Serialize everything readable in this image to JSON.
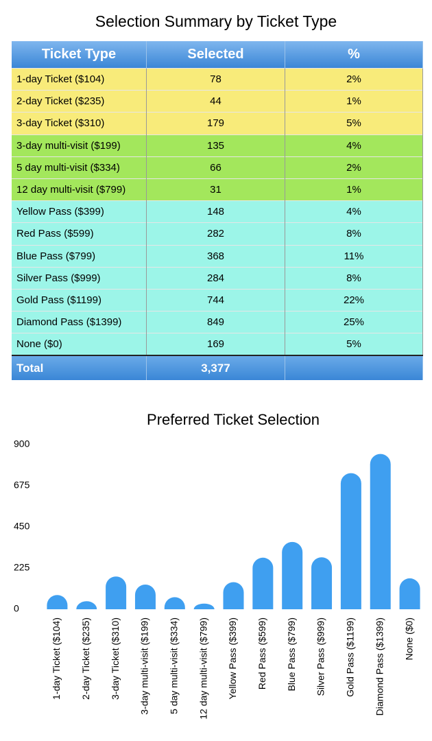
{
  "table": {
    "title": "Selection Summary by Ticket Type",
    "columns": [
      "Ticket Type",
      "Selected",
      "%"
    ],
    "rows": [
      [
        "1-day Ticket ($104)",
        78,
        "2%"
      ],
      [
        "2-day Ticket ($235)",
        44,
        "1%"
      ],
      [
        "3-day Ticket ($310)",
        179,
        "5%"
      ],
      [
        "3-day multi-visit ($199)",
        135,
        "4%"
      ],
      [
        "5 day multi-visit ($334)",
        66,
        "2%"
      ],
      [
        "12 day multi-visit ($799)",
        31,
        "1%"
      ],
      [
        "Yellow Pass ($399)",
        148,
        "4%"
      ],
      [
        "Red Pass ($599)",
        282,
        "8%"
      ],
      [
        "Blue Pass ($799)",
        368,
        "11%"
      ],
      [
        "Silver Pass ($999)",
        284,
        "8%"
      ],
      [
        "Gold Pass ($1199)",
        744,
        "22%"
      ],
      [
        "Diamond Pass ($1399)",
        849,
        "25%"
      ],
      [
        "None ($0)",
        169,
        "5%"
      ]
    ],
    "total": [
      "Total",
      "3,377"
    ]
  },
  "chart_data": {
    "type": "bar",
    "title": "Preferred Ticket Selection",
    "categories": [
      "1-day Ticket ($104)",
      "2-day Ticket ($235)",
      "3-day Ticket ($310)",
      "3-day multi-visit ($199)",
      "5 day multi-visit ($334)",
      "12 day multi-visit ($799)",
      "Yellow Pass ($399)",
      "Red Pass ($599)",
      "Blue Pass ($799)",
      "Silver Pass ($999)",
      "Gold Pass ($1199)",
      "Diamond Pass ($1399)",
      "None ($0)"
    ],
    "values": [
      78,
      44,
      179,
      135,
      66,
      31,
      148,
      282,
      368,
      284,
      744,
      849,
      169
    ],
    "color": "#3f9ff0",
    "ylim": [
      0,
      900
    ],
    "yticks": [
      0,
      225,
      450,
      675,
      900
    ],
    "grid": false
  }
}
